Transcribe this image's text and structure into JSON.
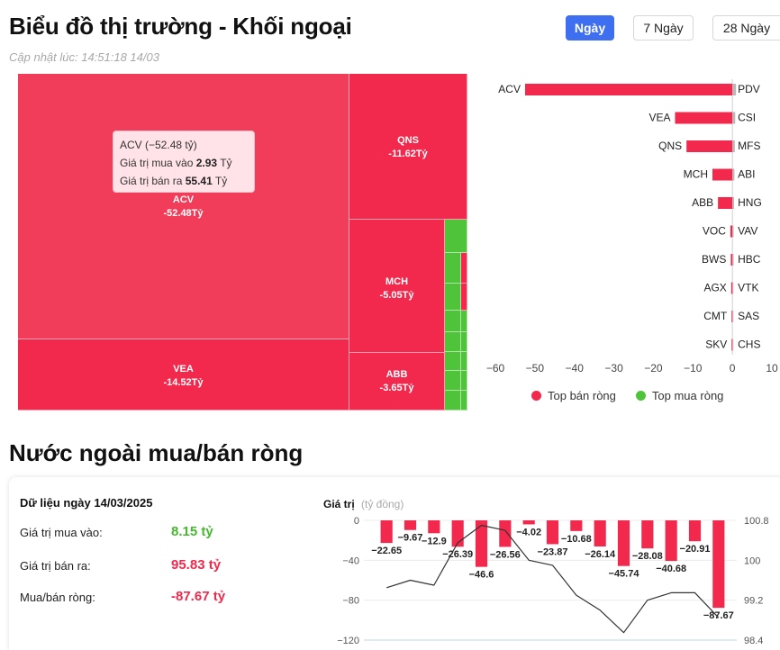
{
  "header": {
    "title": "Biểu đồ thị trường - Khối ngoại",
    "updated": "Cập nhật lúc: 14:51:18 14/03",
    "range_buttons": [
      "Ngày",
      "7 Ngày",
      "28 Ngày"
    ],
    "active_range": "Ngày"
  },
  "colors": {
    "sell": "#f2284c",
    "sell_light": "#f24663",
    "buy": "#4fc43a",
    "accent": "#3e6ff0"
  },
  "treemap": {
    "tiles": [
      {
        "code": "ACV",
        "value": "-52.48Tỷ"
      },
      {
        "code": "QNS",
        "value": "-11.62Tỷ"
      },
      {
        "code": "MCH",
        "value": "-5.05Tỷ"
      },
      {
        "code": "VEA",
        "value": "-14.52Tỷ"
      },
      {
        "code": "ABB",
        "value": "-3.65Tỷ"
      }
    ],
    "tooltip": {
      "title": "ACV (−52.48 tỷ)",
      "buy_label": "Giá trị mua vào",
      "buy_value": "2.93",
      "sell_label": "Giá trị bán ra",
      "sell_value": "55.41",
      "unit": "Tỷ"
    }
  },
  "chart_data": [
    {
      "type": "bar",
      "orientation": "horizontal",
      "categories_sell": [
        "ACV",
        "VEA",
        "QNS",
        "MCH",
        "ABB",
        "VOC",
        "BWS",
        "AGX",
        "CMT",
        "SKV"
      ],
      "categories_buy": [
        "PDV",
        "CSI",
        "MFS",
        "ABI",
        "HNG",
        "VAV",
        "HBC",
        "VTK",
        "SAS",
        "CHS"
      ],
      "series": [
        {
          "name": "Top bán ròng",
          "values": [
            -52.48,
            -14.52,
            -11.62,
            -5.05,
            -3.65,
            -0.5,
            -0.4,
            -0.3,
            -0.2,
            -0.2
          ]
        },
        {
          "name": "Top mua ròng",
          "values": [
            0.8,
            0.6,
            0.5,
            0.4,
            0.3,
            0.2,
            0.2,
            0.1,
            0.1,
            0.1
          ]
        }
      ],
      "xticks": [
        "−60",
        "−50",
        "−40",
        "−30",
        "−20",
        "−10",
        "0",
        "10"
      ],
      "xlim": [
        -60,
        10
      ],
      "legend": "bottom"
    },
    {
      "type": "bar+line",
      "ylabel": "Giá trị",
      "ylabel_unit": "(tỷ đồng)",
      "bar_values": [
        -22.65,
        -9.67,
        -12.9,
        -26.39,
        -46.6,
        -26.56,
        -4.02,
        -23.87,
        -10.68,
        -26.14,
        -45.74,
        -28.08,
        -40.68,
        -20.91,
        -87.67
      ],
      "bar_labels": [
        "−22.65",
        "−9.67",
        "−12.9",
        "−26.39",
        "−46.6",
        "−26.56",
        "−4.02",
        "−23.87",
        "−10.68",
        "−26.14",
        "−45.74",
        "−28.08",
        "−40.68",
        "−20.91",
        "−87.67"
      ],
      "ylim_left": [
        -120,
        0
      ],
      "yticks_left": [
        "0",
        "−40",
        "−80",
        "−120"
      ],
      "line_values": [
        99.45,
        99.6,
        99.5,
        100.35,
        100.7,
        100.6,
        100.0,
        99.9,
        99.3,
        99.0,
        98.55,
        99.2,
        99.35,
        99.35,
        98.85
      ],
      "ylim_right": [
        98.4,
        100.8
      ],
      "yticks_right": [
        "100.8",
        "100",
        "99.2",
        "98.4"
      ]
    }
  ],
  "summary": {
    "date_label": "Dữ liệu ngày 14/03/2025",
    "buy_label": "Giá trị mua vào:",
    "buy_value": "8.15 tỷ",
    "sell_label": "Giá trị bán ra:",
    "sell_value": "95.83 tỷ",
    "net_label": "Mua/bán ròng:",
    "net_value": "-87.67 tỷ"
  },
  "section_title": "Nước ngoài mua/bán ròng",
  "legend": {
    "sell": "Top bán ròng",
    "buy": "Top mua ròng"
  }
}
